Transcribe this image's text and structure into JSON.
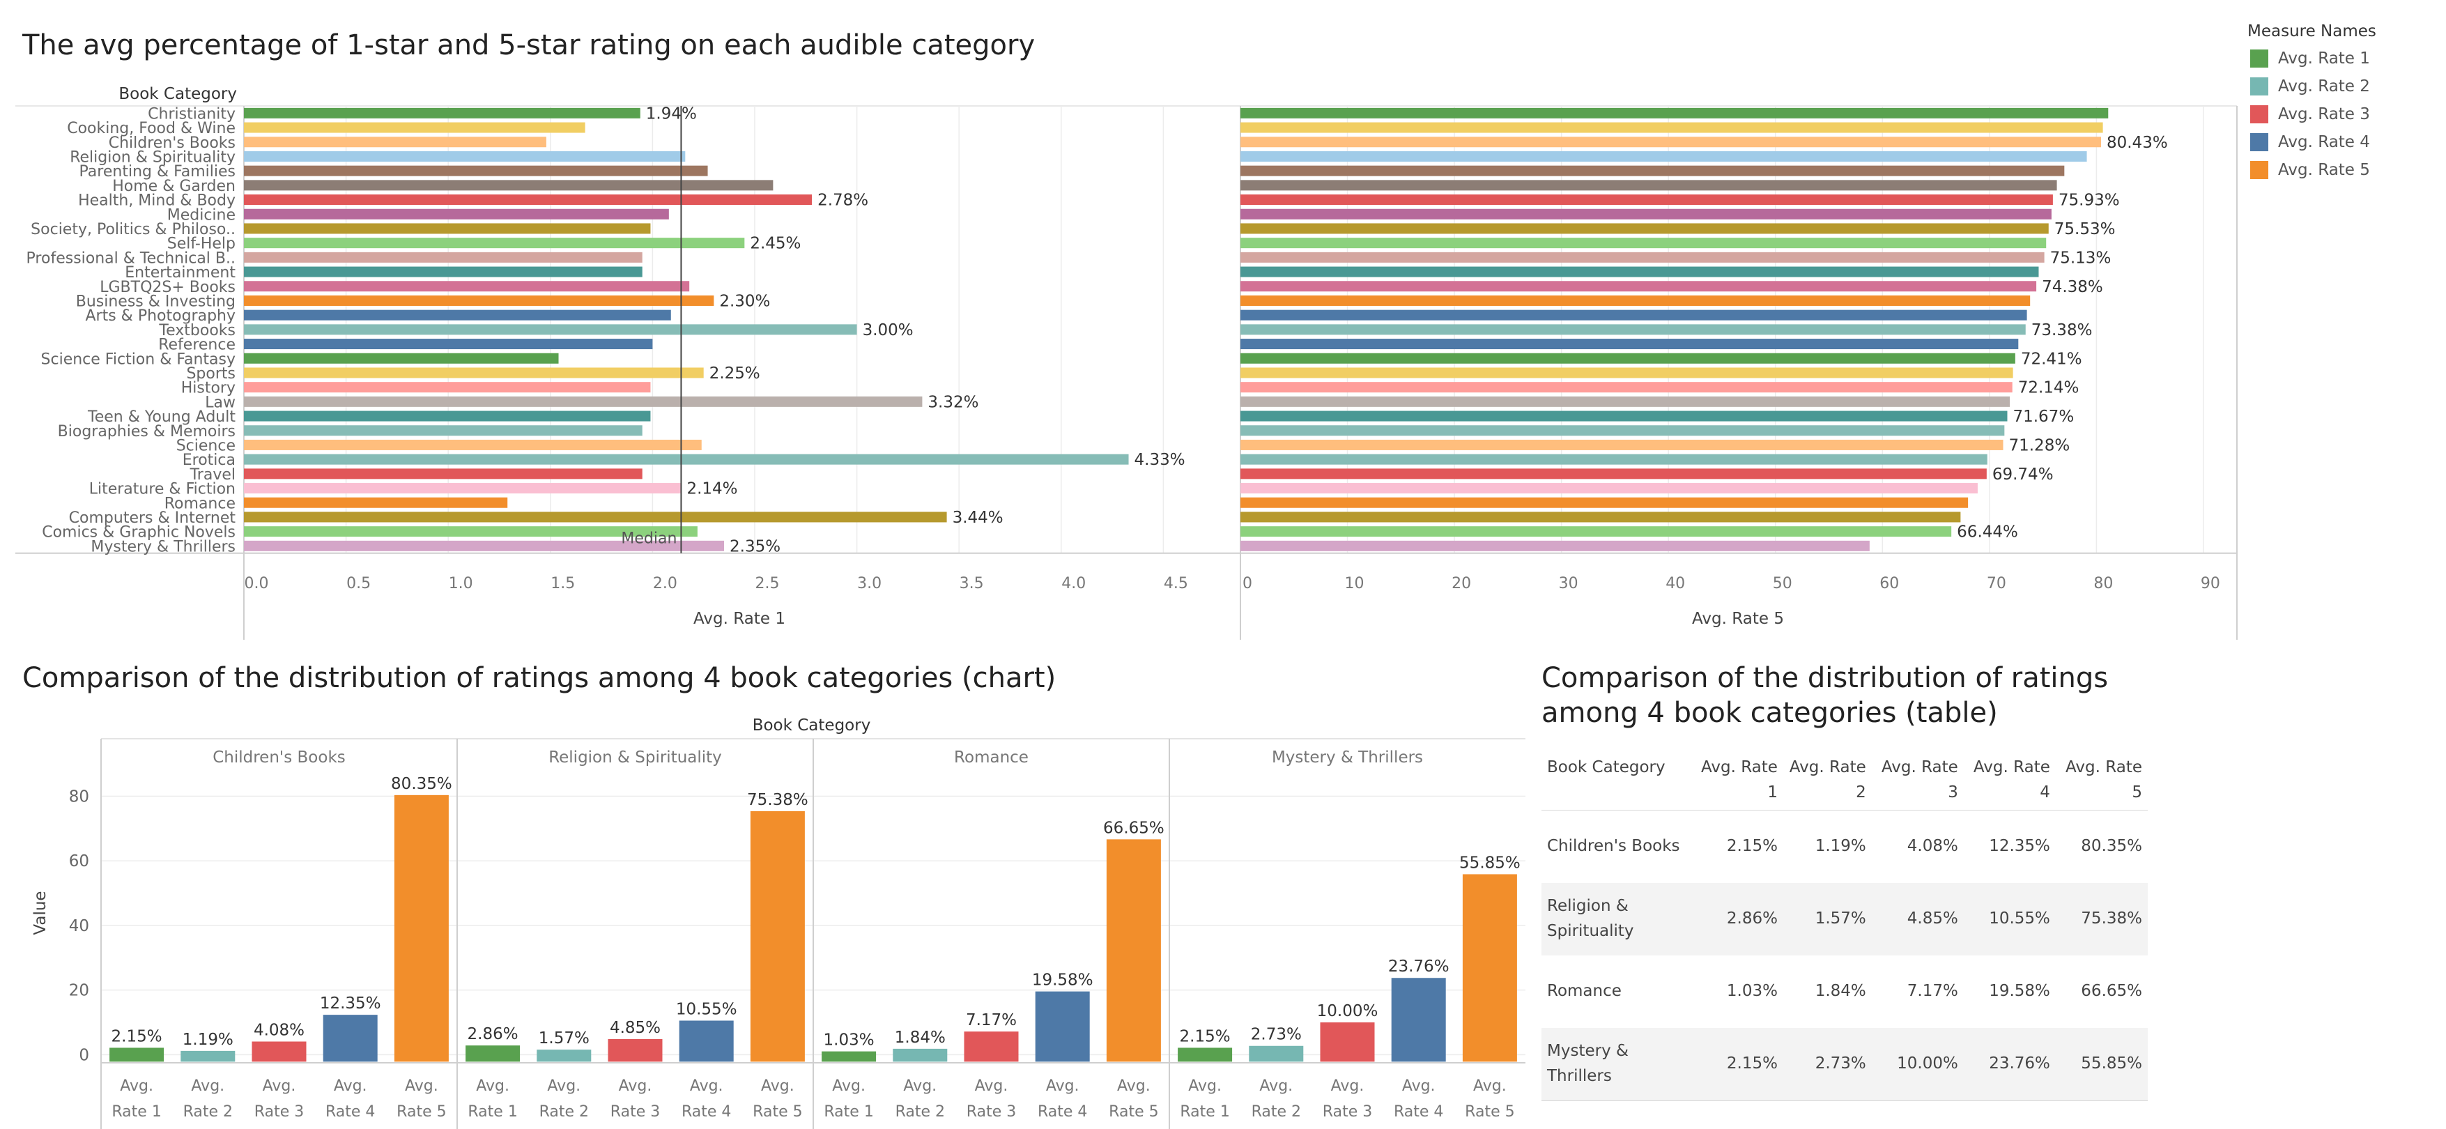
{
  "titles": {
    "top": "The avg percentage of 1-star and 5-star rating on each audible category",
    "bottom_chart": "Comparison of the distribution of ratings among 4 book categories (chart)",
    "bottom_table": "Comparison of the distribution of ratings among 4 book categories (table)"
  },
  "legend": {
    "title": "Measure Names",
    "items": [
      {
        "label": "Avg. Rate 1",
        "color": "#59a14f"
      },
      {
        "label": "Avg. Rate 2",
        "color": "#76b7b2"
      },
      {
        "label": "Avg. Rate 3",
        "color": "#e15759"
      },
      {
        "label": "Avg. Rate 4",
        "color": "#4e79a7"
      },
      {
        "label": "Avg. Rate 5",
        "color": "#f28e2b"
      }
    ]
  },
  "chart_data": [
    {
      "type": "bar",
      "orientation": "horizontal",
      "row_header": "Book Category",
      "xlabel": "Avg. Rate 1",
      "xlim": [
        0,
        4.85
      ],
      "xticks": [
        "0.0",
        "0.5",
        "1.0",
        "1.5",
        "2.0",
        "2.5",
        "3.0",
        "3.5",
        "4.0",
        "4.5"
      ],
      "reference_line": {
        "label": "Median",
        "value": 2.14
      },
      "categories": [
        "Christianity",
        "Cooking, Food & Wine",
        "Children's Books",
        "Religion & Spirituality",
        "Parenting & Families",
        "Home & Garden",
        "Health, Mind & Body",
        "Medicine",
        "Society, Politics & Philoso..",
        "Self-Help",
        "Professional & Technical B..",
        "Entertainment",
        "LGBTQ2S+ Books",
        "Business & Investing",
        "Arts & Photography",
        "Textbooks",
        "Reference",
        "Science Fiction & Fantasy",
        "Sports",
        "History",
        "Law",
        "Teen & Young Adult",
        "Biographies & Memoirs",
        "Science",
        "Erotica",
        "Travel",
        "Literature & Fiction",
        "Romance",
        "Computers & Internet",
        "Comics & Graphic Novels",
        "Mystery & Thrillers"
      ],
      "values": [
        1.94,
        1.67,
        1.48,
        2.16,
        2.27,
        2.59,
        2.78,
        2.08,
        1.99,
        2.45,
        1.95,
        1.95,
        2.18,
        2.3,
        2.09,
        3.0,
        2.0,
        1.54,
        2.25,
        1.99,
        3.32,
        1.99,
        1.95,
        2.24,
        4.33,
        1.95,
        2.14,
        1.29,
        3.44,
        2.22,
        2.35
      ],
      "labels": [
        "1.94%",
        "",
        "",
        "",
        "",
        "",
        "2.78%",
        "",
        "",
        "2.45%",
        "",
        "",
        "",
        "2.30%",
        "",
        "3.00%",
        "",
        "",
        "2.25%",
        "",
        "3.32%",
        "",
        "",
        "",
        "4.33%",
        "",
        "2.14%",
        "",
        "3.44%",
        "",
        "2.35%"
      ],
      "colors": [
        "#59a14f",
        "#f1ce63",
        "#ffbe7d",
        "#a0cbe8",
        "#9d7660",
        "#8c7d75",
        "#e15759",
        "#b6699b",
        "#b6992d",
        "#8cd17d",
        "#d4a6a0",
        "#499894",
        "#d37295",
        "#f28e2b",
        "#4e79a7",
        "#86bcb6",
        "#4e79a7",
        "#59a14f",
        "#f1ce63",
        "#ff9d9a",
        "#bab0ac",
        "#499894",
        "#86bcb6",
        "#ffbe7d",
        "#86bcb6",
        "#e15759",
        "#fabfd2",
        "#f28e2b",
        "#b6992d",
        "#8cd17d",
        "#d4a6c8"
      ]
    },
    {
      "type": "bar",
      "orientation": "horizontal",
      "xlabel": "Avg. Rate 5",
      "xlim": [
        0,
        93
      ],
      "xticks": [
        "0",
        "10",
        "20",
        "30",
        "40",
        "50",
        "60",
        "70",
        "80",
        "90"
      ],
      "categories": [
        "Christianity",
        "Cooking, Food & Wine",
        "Children's Books",
        "Religion & Spirituality",
        "Parenting & Families",
        "Home & Garden",
        "Health, Mind & Body",
        "Medicine",
        "Society, Politics & Philoso..",
        "Self-Help",
        "Professional & Technical B..",
        "Entertainment",
        "LGBTQ2S+ Books",
        "Business & Investing",
        "Arts & Photography",
        "Textbooks",
        "Reference",
        "Science Fiction & Fantasy",
        "Sports",
        "History",
        "Law",
        "Teen & Young Adult",
        "Biographies & Memoirs",
        "Science",
        "Erotica",
        "Travel",
        "Literature & Fiction",
        "Romance",
        "Computers & Internet",
        "Comics & Graphic Novels",
        "Mystery & Thrillers"
      ],
      "values": [
        81.1,
        80.6,
        80.43,
        79.1,
        77.0,
        76.3,
        75.93,
        75.8,
        75.53,
        75.3,
        75.13,
        74.6,
        74.38,
        73.8,
        73.5,
        73.38,
        72.7,
        72.41,
        72.2,
        72.14,
        71.9,
        71.67,
        71.4,
        71.28,
        69.8,
        69.74,
        68.9,
        68.0,
        67.3,
        66.44,
        58.8
      ],
      "labels": [
        "",
        "",
        "80.43%",
        "",
        "",
        "",
        "75.93%",
        "",
        "75.53%",
        "",
        "75.13%",
        "",
        "74.38%",
        "",
        "",
        "73.38%",
        "",
        "72.41%",
        "",
        "72.14%",
        "",
        "71.67%",
        "",
        "71.28%",
        "",
        "69.74%",
        "",
        "",
        "",
        "66.44%",
        ""
      ],
      "colors": [
        "#59a14f",
        "#f1ce63",
        "#ffbe7d",
        "#a0cbe8",
        "#9d7660",
        "#8c7d75",
        "#e15759",
        "#b6699b",
        "#b6992d",
        "#8cd17d",
        "#d4a6a0",
        "#499894",
        "#d37295",
        "#f28e2b",
        "#4e79a7",
        "#86bcb6",
        "#4e79a7",
        "#59a14f",
        "#f1ce63",
        "#ff9d9a",
        "#bab0ac",
        "#499894",
        "#86bcb6",
        "#ffbe7d",
        "#86bcb6",
        "#e15759",
        "#fabfd2",
        "#f28e2b",
        "#b6992d",
        "#8cd17d",
        "#d4a6c8"
      ]
    },
    {
      "type": "bar",
      "column_header": "Book Category",
      "ylabel": "Value",
      "ylim": [
        -2.5,
        87
      ],
      "yticks": [
        "0",
        "20",
        "40",
        "60",
        "80"
      ],
      "measures": [
        "Avg. Rate 1",
        "Avg. Rate 2",
        "Avg. Rate 3",
        "Avg. Rate 4",
        "Avg. Rate 5"
      ],
      "panels": [
        {
          "category": "Children's Books",
          "values": [
            2.15,
            1.19,
            4.08,
            12.35,
            80.35
          ],
          "labels": [
            "2.15%",
            "1.19%",
            "4.08%",
            "12.35%",
            "80.35%"
          ]
        },
        {
          "category": "Religion & Spirituality",
          "values": [
            2.86,
            1.57,
            4.85,
            10.55,
            75.38
          ],
          "labels": [
            "2.86%",
            "1.57%",
            "4.85%",
            "10.55%",
            "75.38%"
          ]
        },
        {
          "category": "Romance",
          "values": [
            1.03,
            1.84,
            7.17,
            19.58,
            66.65
          ],
          "labels": [
            "1.03%",
            "1.84%",
            "7.17%",
            "19.58%",
            "66.65%"
          ]
        },
        {
          "category": "Mystery & Thrillers",
          "values": [
            2.15,
            2.73,
            10.0,
            23.76,
            55.85
          ],
          "labels": [
            "2.15%",
            "2.73%",
            "10.00%",
            "23.76%",
            "55.85%"
          ]
        }
      ]
    },
    {
      "type": "table",
      "headers": [
        "Book Category",
        "Avg. Rate 1",
        "Avg. Rate 2",
        "Avg. Rate 3",
        "Avg. Rate 4",
        "Avg. Rate 5"
      ],
      "rows": [
        [
          "Children's Books",
          "2.15%",
          "1.19%",
          "4.08%",
          "12.35%",
          "80.35%"
        ],
        [
          "Religion & Spirituality",
          "2.86%",
          "1.57%",
          "4.85%",
          "10.55%",
          "75.38%"
        ],
        [
          "Romance",
          "1.03%",
          "1.84%",
          "7.17%",
          "19.58%",
          "66.65%"
        ],
        [
          "Mystery & Thrillers",
          "2.15%",
          "2.73%",
          "10.00%",
          "23.76%",
          "55.85%"
        ]
      ]
    }
  ]
}
